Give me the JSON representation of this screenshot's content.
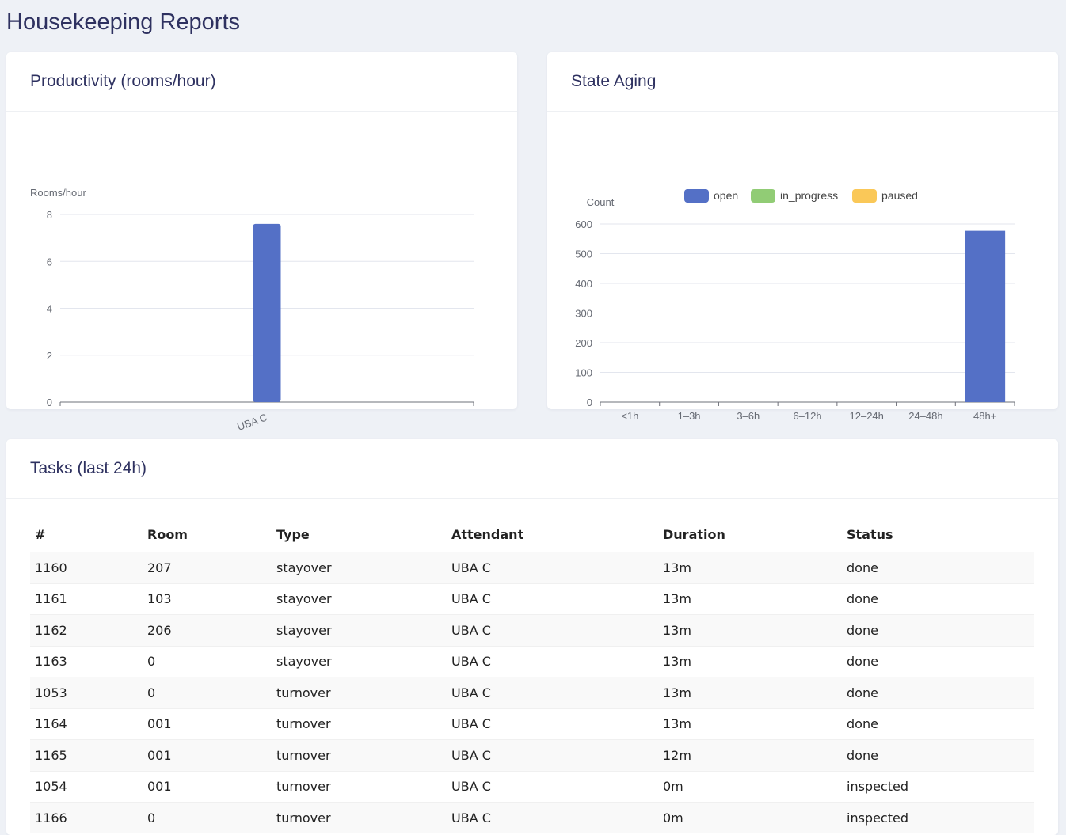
{
  "page": {
    "title": "Housekeeping Reports"
  },
  "productivity": {
    "title": "Productivity (rooms/hour)",
    "chart_data": {
      "type": "bar",
      "ylabel": "Rooms/hour",
      "categories": [
        "UBA C"
      ],
      "values": [
        7.6
      ],
      "ylim": [
        0,
        8
      ],
      "yticks": [
        0,
        2,
        4,
        6,
        8
      ],
      "grid": true,
      "colors": [
        "#5470c6"
      ]
    }
  },
  "aging": {
    "title": "State Aging",
    "chart_data": {
      "type": "bar",
      "ylabel": "Count",
      "categories": [
        "<1h",
        "1–3h",
        "3–6h",
        "6–12h",
        "12–24h",
        "24–48h",
        "48h+"
      ],
      "series": [
        {
          "name": "open",
          "color": "#5470c6",
          "values": [
            0,
            0,
            0,
            0,
            0,
            0,
            577
          ]
        },
        {
          "name": "in_progress",
          "color": "#91cc75",
          "values": [
            0,
            0,
            0,
            0,
            0,
            0,
            0
          ]
        },
        {
          "name": "paused",
          "color": "#fac858",
          "values": [
            0,
            0,
            0,
            0,
            0,
            0,
            0
          ]
        }
      ],
      "ylim": [
        0,
        600
      ],
      "yticks": [
        0,
        100,
        200,
        300,
        400,
        500,
        600
      ],
      "legend": "top",
      "grid": true
    }
  },
  "tasks": {
    "title": "Tasks (last 24h)",
    "columns": [
      "#",
      "Room",
      "Type",
      "Attendant",
      "Duration",
      "Status"
    ],
    "rows": [
      [
        "1160",
        "207",
        "stayover",
        "UBA C",
        "13m",
        "done"
      ],
      [
        "1161",
        "103",
        "stayover",
        "UBA C",
        "13m",
        "done"
      ],
      [
        "1162",
        "206",
        "stayover",
        "UBA C",
        "13m",
        "done"
      ],
      [
        "1163",
        "0",
        "stayover",
        "UBA C",
        "13m",
        "done"
      ],
      [
        "1053",
        "0",
        "turnover",
        "UBA C",
        "13m",
        "done"
      ],
      [
        "1164",
        "001",
        "turnover",
        "UBA C",
        "13m",
        "done"
      ],
      [
        "1165",
        "001",
        "turnover",
        "UBA C",
        "12m",
        "done"
      ],
      [
        "1054",
        "001",
        "turnover",
        "UBA C",
        "0m",
        "inspected"
      ],
      [
        "1166",
        "0",
        "turnover",
        "UBA C",
        "0m",
        "inspected"
      ]
    ]
  }
}
